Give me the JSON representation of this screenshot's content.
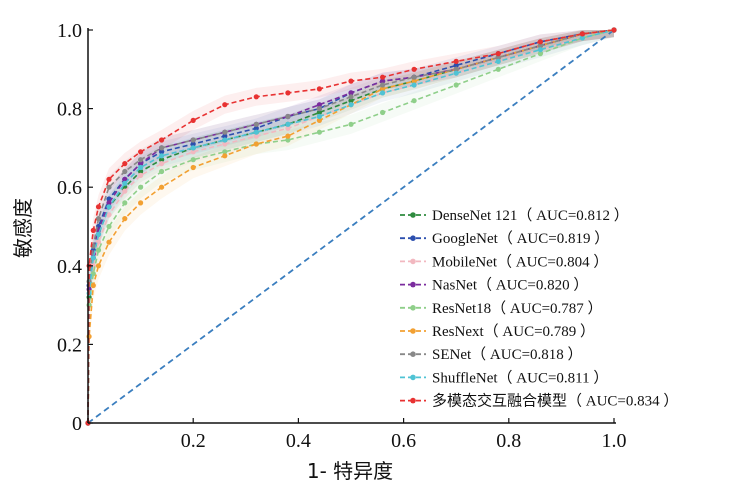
{
  "chart_data": {
    "type": "line",
    "title": "",
    "xlabel": "1- 特异度",
    "ylabel": "敏感度",
    "xlim": [
      0,
      1
    ],
    "ylim": [
      0,
      1
    ],
    "x_ticks": [
      "0",
      "0.2",
      "0.4",
      "0.6",
      "0.8",
      "1.0"
    ],
    "y_ticks": [
      "0",
      "0.2",
      "0.4",
      "0.6",
      "0.8",
      "1.0"
    ],
    "legend_position": "bottom-right",
    "reference_line": {
      "x": [
        0,
        1
      ],
      "y": [
        0,
        1
      ],
      "color": "#3a7ebf",
      "style": "dashed"
    },
    "series": [
      {
        "name": "DenseNet 121",
        "auc_label": "（ AUC=0.812 ）",
        "color": "#2e8b3e",
        "x": [
          0,
          0.002,
          0.01,
          0.02,
          0.04,
          0.07,
          0.1,
          0.14,
          0.2,
          0.26,
          0.32,
          0.38,
          0.44,
          0.5,
          0.56,
          0.62,
          0.7,
          0.78,
          0.86,
          0.94,
          1.0
        ],
        "y": [
          0,
          0.32,
          0.42,
          0.48,
          0.55,
          0.6,
          0.64,
          0.67,
          0.7,
          0.72,
          0.74,
          0.76,
          0.79,
          0.82,
          0.85,
          0.87,
          0.9,
          0.93,
          0.96,
          0.99,
          1.0
        ]
      },
      {
        "name": "GoogleNet",
        "auc_label": "（ AUC=0.819 ）",
        "color": "#2c4fae",
        "x": [
          0,
          0.002,
          0.01,
          0.02,
          0.04,
          0.07,
          0.1,
          0.14,
          0.2,
          0.26,
          0.32,
          0.38,
          0.44,
          0.5,
          0.56,
          0.62,
          0.7,
          0.78,
          0.86,
          0.94,
          1.0
        ],
        "y": [
          0,
          0.35,
          0.44,
          0.5,
          0.57,
          0.62,
          0.66,
          0.69,
          0.71,
          0.73,
          0.75,
          0.78,
          0.8,
          0.84,
          0.87,
          0.88,
          0.91,
          0.94,
          0.97,
          0.99,
          1.0
        ]
      },
      {
        "name": "MobileNet",
        "auc_label": "（ AUC=0.804 ）",
        "color": "#f2b8c0",
        "x": [
          0,
          0.002,
          0.01,
          0.02,
          0.04,
          0.07,
          0.1,
          0.14,
          0.2,
          0.26,
          0.32,
          0.38,
          0.44,
          0.5,
          0.56,
          0.62,
          0.7,
          0.78,
          0.86,
          0.94,
          1.0
        ],
        "y": [
          0,
          0.3,
          0.4,
          0.46,
          0.53,
          0.59,
          0.63,
          0.66,
          0.69,
          0.71,
          0.73,
          0.75,
          0.78,
          0.81,
          0.84,
          0.86,
          0.89,
          0.92,
          0.95,
          0.98,
          1.0
        ]
      },
      {
        "name": "NasNet",
        "auc_label": "（ AUC=0.820 ）",
        "color": "#7b2c9e",
        "x": [
          0,
          0.002,
          0.01,
          0.02,
          0.04,
          0.07,
          0.1,
          0.14,
          0.2,
          0.26,
          0.32,
          0.38,
          0.44,
          0.5,
          0.56,
          0.62,
          0.7,
          0.78,
          0.86,
          0.94,
          1.0
        ],
        "y": [
          0,
          0.34,
          0.43,
          0.49,
          0.56,
          0.62,
          0.66,
          0.7,
          0.72,
          0.74,
          0.76,
          0.78,
          0.81,
          0.84,
          0.87,
          0.88,
          0.9,
          0.93,
          0.96,
          0.99,
          1.0
        ]
      },
      {
        "name": "ResNet18",
        "auc_label": "（ AUC=0.787 ）",
        "color": "#8fcf8a",
        "x": [
          0,
          0.002,
          0.01,
          0.02,
          0.04,
          0.07,
          0.1,
          0.14,
          0.2,
          0.26,
          0.32,
          0.38,
          0.44,
          0.5,
          0.56,
          0.62,
          0.7,
          0.78,
          0.86,
          0.94,
          1.0
        ],
        "y": [
          0,
          0.3,
          0.38,
          0.44,
          0.5,
          0.56,
          0.6,
          0.64,
          0.67,
          0.69,
          0.71,
          0.72,
          0.74,
          0.76,
          0.79,
          0.82,
          0.86,
          0.9,
          0.94,
          0.98,
          1.0
        ]
      },
      {
        "name": "ResNext",
        "auc_label": "（ AUC=0.789 ）",
        "color": "#f2a032",
        "x": [
          0,
          0.002,
          0.01,
          0.02,
          0.04,
          0.07,
          0.1,
          0.14,
          0.2,
          0.26,
          0.32,
          0.38,
          0.44,
          0.5,
          0.56,
          0.62,
          0.7,
          0.78,
          0.86,
          0.94,
          1.0
        ],
        "y": [
          0,
          0.22,
          0.35,
          0.4,
          0.46,
          0.52,
          0.56,
          0.6,
          0.65,
          0.68,
          0.71,
          0.73,
          0.77,
          0.81,
          0.85,
          0.87,
          0.9,
          0.93,
          0.96,
          0.99,
          1.0
        ]
      },
      {
        "name": "SENet",
        "auc_label": "（ AUC=0.818 ）",
        "color": "#888888",
        "x": [
          0,
          0.002,
          0.01,
          0.02,
          0.04,
          0.07,
          0.1,
          0.14,
          0.2,
          0.26,
          0.32,
          0.38,
          0.44,
          0.5,
          0.56,
          0.62,
          0.7,
          0.78,
          0.86,
          0.94,
          1.0
        ],
        "y": [
          0,
          0.36,
          0.45,
          0.52,
          0.6,
          0.64,
          0.67,
          0.7,
          0.72,
          0.74,
          0.76,
          0.78,
          0.8,
          0.83,
          0.86,
          0.88,
          0.9,
          0.93,
          0.96,
          0.99,
          1.0
        ]
      },
      {
        "name": "ShuffleNet",
        "auc_label": "（ AUC=0.811 ）",
        "color": "#4fc3d4",
        "x": [
          0,
          0.002,
          0.01,
          0.02,
          0.04,
          0.07,
          0.1,
          0.14,
          0.2,
          0.26,
          0.32,
          0.38,
          0.44,
          0.5,
          0.56,
          0.62,
          0.7,
          0.78,
          0.86,
          0.94,
          1.0
        ],
        "y": [
          0,
          0.33,
          0.42,
          0.48,
          0.55,
          0.61,
          0.65,
          0.68,
          0.7,
          0.72,
          0.74,
          0.76,
          0.78,
          0.81,
          0.84,
          0.86,
          0.89,
          0.92,
          0.95,
          0.98,
          1.0
        ]
      },
      {
        "name": "多模态交互融合模型",
        "auc_label": "（ AUC=0.834 ）",
        "color": "#e83232",
        "x": [
          0,
          0.002,
          0.01,
          0.02,
          0.04,
          0.07,
          0.1,
          0.14,
          0.2,
          0.26,
          0.32,
          0.38,
          0.44,
          0.5,
          0.56,
          0.62,
          0.7,
          0.78,
          0.86,
          0.94,
          1.0
        ],
        "y": [
          0,
          0.4,
          0.49,
          0.55,
          0.62,
          0.66,
          0.69,
          0.72,
          0.77,
          0.81,
          0.83,
          0.84,
          0.85,
          0.87,
          0.88,
          0.9,
          0.92,
          0.94,
          0.97,
          0.99,
          1.0
        ]
      }
    ]
  }
}
